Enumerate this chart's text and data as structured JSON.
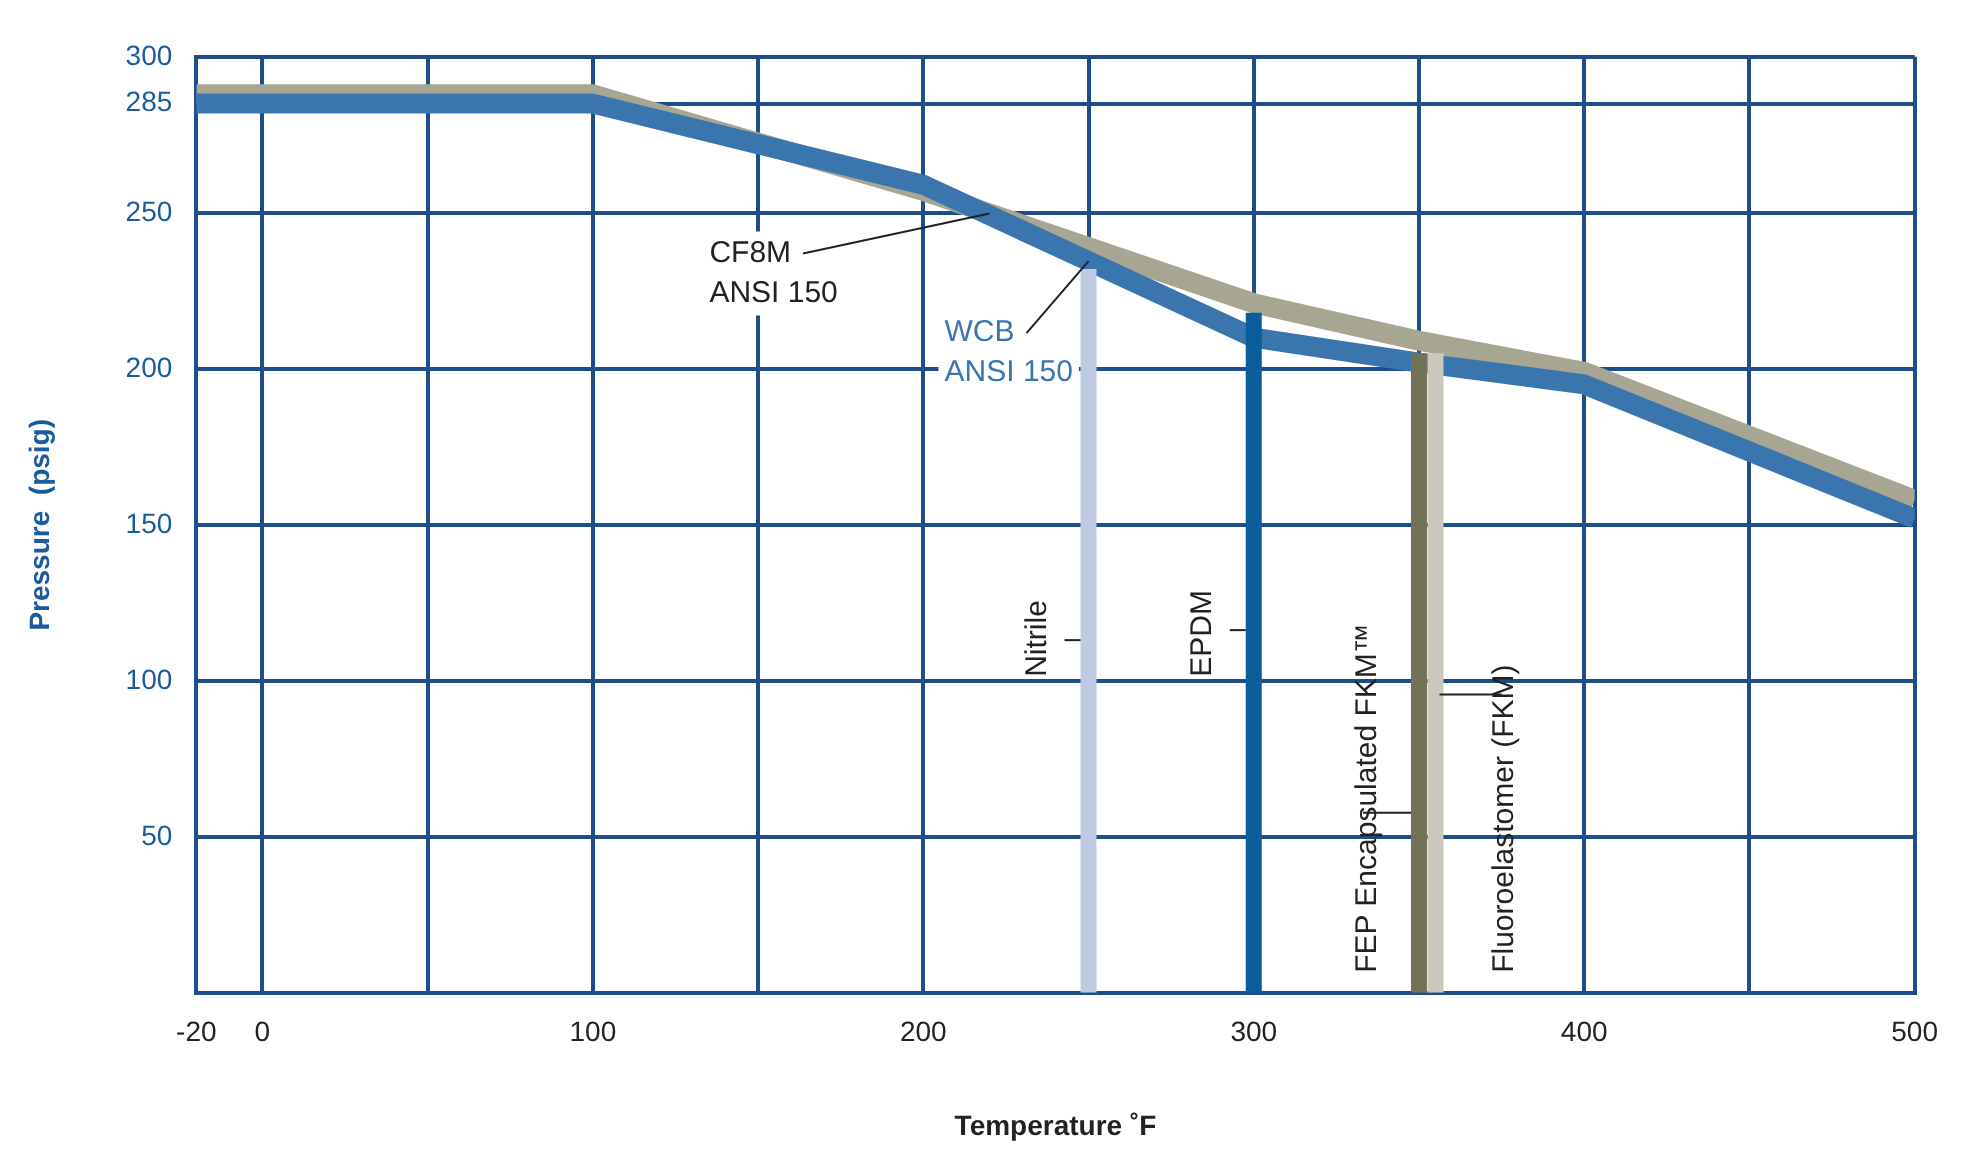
{
  "chart_data": {
    "type": "line",
    "xlabel": "Temperature ˚F",
    "ylabel": "Pressure  (psig)",
    "xlim": [
      -20,
      500
    ],
    "ylim": [
      0,
      300
    ],
    "xticks": [
      -20,
      0,
      {
        "value": 50,
        "label": null
      },
      100,
      {
        "value": 150,
        "label": null
      },
      200,
      {
        "value": 250,
        "label": null
      },
      300,
      {
        "value": 350,
        "label": null
      },
      400,
      {
        "value": 450,
        "label": null
      },
      500
    ],
    "yticks": [
      {
        "value": 0,
        "label": null
      },
      50,
      100,
      150,
      200,
      250,
      285,
      300
    ],
    "grid": true,
    "legend": false,
    "marker": "none",
    "line_style": "solid",
    "series": [
      {
        "name": "CF8M\nANSI 150",
        "color": "#a6a693",
        "x": [
          -20,
          100,
          200,
          300,
          350,
          400,
          500
        ],
        "values": [
          288,
          288,
          257,
          221,
          209,
          199,
          158
        ]
      },
      {
        "name": "WCB\nANSI 150",
        "color": "#3a76ad",
        "x": [
          -20,
          100,
          200,
          300,
          350,
          400,
          500
        ],
        "values": [
          285,
          285,
          259,
          210,
          202,
          195,
          152
        ]
      },
      {
        "name": "Nitrile",
        "color": "#bccae2",
        "x": [
          250,
          250
        ],
        "values": [
          0,
          232
        ]
      },
      {
        "name": "EPDM",
        "color": "#0a5c9a",
        "x": [
          300,
          300
        ],
        "values": [
          0,
          218
        ]
      },
      {
        "name": "FEP Encapsulated FKM™",
        "color": "#737259",
        "x": [
          350,
          350
        ],
        "values": [
          0,
          205
        ]
      },
      {
        "name": "Fluoroelastomer (FKM)",
        "color": "#c9c9bc",
        "x": [
          355,
          355
        ],
        "values": [
          0,
          205
        ]
      }
    ]
  }
}
